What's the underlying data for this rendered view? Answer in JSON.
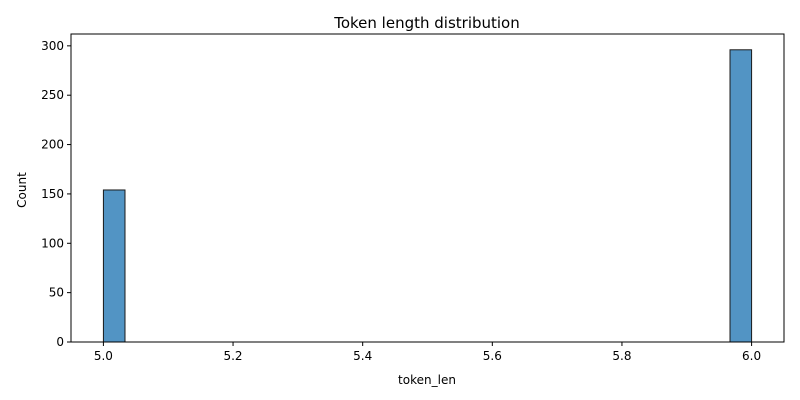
{
  "chart_data": {
    "type": "bar",
    "title": "Token length distribution",
    "xlabel": "token_len",
    "ylabel": "Count",
    "xlim": [
      4.95,
      6.05
    ],
    "ylim": [
      0,
      312
    ],
    "x_ticks": [
      5.0,
      5.2,
      5.4,
      5.6,
      5.8,
      6.0
    ],
    "x_tick_labels": [
      "5.0",
      "5.2",
      "5.4",
      "5.6",
      "5.8",
      "6.0"
    ],
    "y_ticks": [
      0,
      50,
      100,
      150,
      200,
      250,
      300
    ],
    "y_tick_labels": [
      "0",
      "50",
      "100",
      "150",
      "200",
      "250",
      "300"
    ],
    "bins": {
      "start": 5.0,
      "end": 6.0,
      "count": 30
    },
    "bars": [
      {
        "x0": 5.0,
        "x1": 5.0333,
        "value": 154
      },
      {
        "x0": 5.9667,
        "x1": 6.0,
        "value": 296
      }
    ],
    "grid": false,
    "bar_color": "#5294c4",
    "edge_color": "#1a1a1a"
  }
}
